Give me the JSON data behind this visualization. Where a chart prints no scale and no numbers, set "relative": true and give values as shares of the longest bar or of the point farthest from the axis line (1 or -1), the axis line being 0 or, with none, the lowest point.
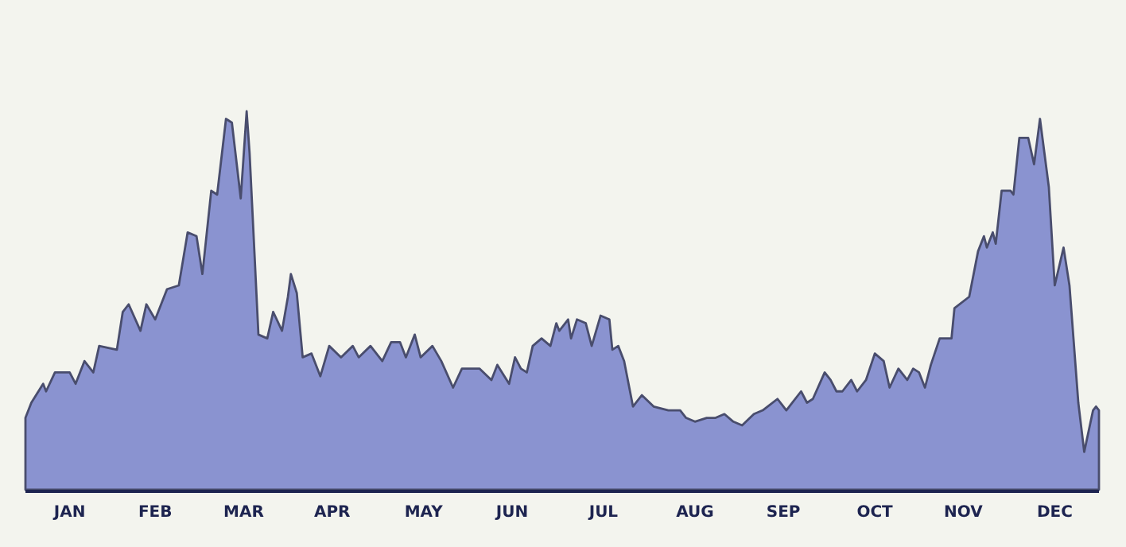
{
  "chart_data": {
    "type": "area",
    "relative": true,
    "xlim": [
      "--01-01",
      "--12-31"
    ],
    "xticks": [
      {
        "value": "--01-16",
        "label": "JAN"
      },
      {
        "value": "--02-14",
        "label": "FEB"
      },
      {
        "value": "--03-16",
        "label": "MAR"
      },
      {
        "value": "--04-15",
        "label": "APR"
      },
      {
        "value": "--05-16",
        "label": "MAY"
      },
      {
        "value": "--06-15",
        "label": "JUN"
      },
      {
        "value": "--07-16",
        "label": "JUL"
      },
      {
        "value": "--08-16",
        "label": "AUG"
      },
      {
        "value": "--09-15",
        "label": "SEP"
      },
      {
        "value": "--10-16",
        "label": "OCT"
      },
      {
        "value": "--11-15",
        "label": "NOV"
      },
      {
        "value": "--12-16",
        "label": "DEC"
      }
    ],
    "series": [
      {
        "color": "#8a93d0",
        "x": [
          "--01-01",
          "--01-03",
          "--01-07",
          "--01-08",
          "--01-11",
          "--01-16",
          "--01-18",
          "--01-21",
          "--01-24",
          "--01-26",
          "--02-01",
          "--02-03",
          "--02-05",
          "--02-09",
          "--02-11",
          "--02-14",
          "--02-18",
          "--02-22",
          "--02-25",
          "--02-28",
          "--03-02",
          "--03-05",
          "--03-07",
          "--03-10",
          "--03-12",
          "--03-15",
          "--03-17",
          "--03-18",
          "--03-21",
          "--03-24",
          "--03-26",
          "--03-29",
          "--03-31",
          "--04-01",
          "--04-03",
          "--04-05",
          "--04-08",
          "--04-11",
          "--04-14",
          "--04-18",
          "--04-22",
          "--04-24",
          "--04-28",
          "--05-02",
          "--05-05",
          "--05-08",
          "--05-10",
          "--05-13",
          "--05-15",
          "--05-19",
          "--05-22",
          "--05-26",
          "--05-29",
          "--06-04",
          "--06-08",
          "--06-10",
          "--06-14",
          "--06-16",
          "--06-18",
          "--06-20",
          "--06-22",
          "--06-25",
          "--06-28",
          "--06-30",
          "--07-01",
          "--07-04",
          "--07-05",
          "--07-07",
          "--07-10",
          "--07-12",
          "--07-15",
          "--07-18",
          "--07-19",
          "--07-21",
          "--07-23",
          "--07-26",
          "--07-29",
          "--08-02",
          "--08-07",
          "--08-11",
          "--08-13",
          "--08-16",
          "--08-20",
          "--08-23",
          "--08-26",
          "--08-29",
          "--09-01",
          "--09-05",
          "--09-08",
          "--09-13",
          "--09-16",
          "--09-21",
          "--09-23",
          "--09-25",
          "--09-29",
          "--10-01",
          "--10-03",
          "--10-05",
          "--10-08",
          "--10-10",
          "--10-13",
          "--10-16",
          "--10-19",
          "--10-21",
          "--10-24",
          "--10-27",
          "--10-29",
          "--10-31",
          "--11-02",
          "--11-04",
          "--11-07",
          "--11-11",
          "--11-12",
          "--11-17",
          "--11-20",
          "--11-22",
          "--11-23",
          "--11-25",
          "--11-26",
          "--11-28",
          "--12-01",
          "--12-02",
          "--12-04",
          "--12-07",
          "--12-09",
          "--12-11",
          "--12-14",
          "--12-16",
          "--12-19",
          "--12-21",
          "--12-24",
          "--12-26",
          "--12-29",
          "--12-30",
          "--12-31"
        ],
        "values": [
          0.19,
          0.23,
          0.28,
          0.26,
          0.31,
          0.31,
          0.28,
          0.34,
          0.31,
          0.38,
          0.37,
          0.47,
          0.49,
          0.42,
          0.49,
          0.45,
          0.53,
          0.54,
          0.68,
          0.67,
          0.57,
          0.79,
          0.78,
          0.98,
          0.97,
          0.77,
          1,
          0.89,
          0.41,
          0.4,
          0.47,
          0.42,
          0.51,
          0.57,
          0.52,
          0.35,
          0.36,
          0.3,
          0.38,
          0.35,
          0.38,
          0.35,
          0.38,
          0.34,
          0.39,
          0.39,
          0.35,
          0.41,
          0.35,
          0.38,
          0.34,
          0.27,
          0.32,
          0.32,
          0.29,
          0.33,
          0.28,
          0.35,
          0.32,
          0.31,
          0.38,
          0.4,
          0.38,
          0.44,
          0.42,
          0.45,
          0.4,
          0.45,
          0.44,
          0.38,
          0.46,
          0.45,
          0.37,
          0.38,
          0.34,
          0.22,
          0.25,
          0.22,
          0.21,
          0.21,
          0.19,
          0.18,
          0.19,
          0.19,
          0.2,
          0.18,
          0.17,
          0.2,
          0.21,
          0.24,
          0.21,
          0.26,
          0.23,
          0.24,
          0.31,
          0.29,
          0.26,
          0.26,
          0.29,
          0.26,
          0.29,
          0.36,
          0.34,
          0.27,
          0.32,
          0.29,
          0.32,
          0.31,
          0.27,
          0.33,
          0.4,
          0.4,
          0.48,
          0.51,
          0.63,
          0.67,
          0.64,
          0.68,
          0.65,
          0.79,
          0.79,
          0.78,
          0.93,
          0.93,
          0.86,
          0.98,
          0.8,
          0.54,
          0.64,
          0.54,
          0.23,
          0.1,
          0.21,
          0.22,
          0.21
        ]
      }
    ]
  }
}
